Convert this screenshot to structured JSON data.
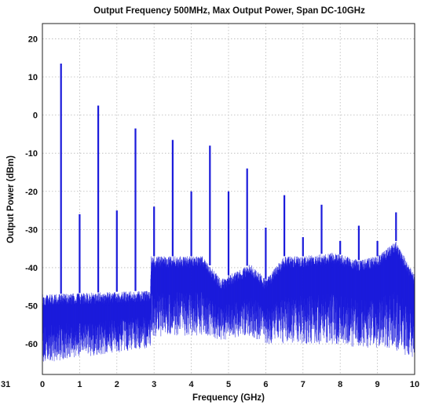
{
  "chart_data": {
    "type": "line",
    "title": "Output Frequency 500MHz, Max Output Power, Span DC-10GHz",
    "xlabel": "Frequency (GHz)",
    "ylabel": "Output Power (dBm)",
    "xlim": [
      0,
      10
    ],
    "ylim": [
      -68,
      24
    ],
    "x_ticks": [
      0,
      1,
      2,
      3,
      4,
      5,
      6,
      7,
      8,
      9,
      10
    ],
    "y_ticks": [
      20,
      10,
      0,
      -10,
      -20,
      -30,
      -40,
      -50,
      -60
    ],
    "grid": true,
    "line_color": "#1a1adb",
    "series": [
      {
        "name": "",
        "peaks": [
          {
            "x": 0.5,
            "y": 13.5
          },
          {
            "x": 1.0,
            "y": -26
          },
          {
            "x": 1.5,
            "y": 2.5
          },
          {
            "x": 2.0,
            "y": -25
          },
          {
            "x": 2.5,
            "y": -3.5
          },
          {
            "x": 3.0,
            "y": -24
          },
          {
            "x": 3.5,
            "y": -6.5
          },
          {
            "x": 4.0,
            "y": -20
          },
          {
            "x": 4.5,
            "y": -8
          },
          {
            "x": 5.0,
            "y": -20
          },
          {
            "x": 5.5,
            "y": -14
          },
          {
            "x": 6.0,
            "y": -29.5
          },
          {
            "x": 6.5,
            "y": -21
          },
          {
            "x": 7.0,
            "y": -32
          },
          {
            "x": 7.5,
            "y": -23.5
          },
          {
            "x": 8.0,
            "y": -33
          },
          {
            "x": 8.5,
            "y": -29
          },
          {
            "x": 9.0,
            "y": -33
          },
          {
            "x": 9.5,
            "y": -25.5
          }
        ],
        "noise_floor": [
          {
            "x": 0.0,
            "top": -47,
            "bottom": -65
          },
          {
            "x": 2.9,
            "top": -46,
            "bottom": -61
          },
          {
            "x": 2.92,
            "top": -37,
            "bottom": -58
          },
          {
            "x": 4.3,
            "top": -37,
            "bottom": -58
          },
          {
            "x": 4.8,
            "top": -43,
            "bottom": -59
          },
          {
            "x": 5.6,
            "top": -39,
            "bottom": -58
          },
          {
            "x": 6.0,
            "top": -43,
            "bottom": -60
          },
          {
            "x": 6.5,
            "top": -37,
            "bottom": -60
          },
          {
            "x": 7.0,
            "top": -37,
            "bottom": -60
          },
          {
            "x": 7.8,
            "top": -36,
            "bottom": -60
          },
          {
            "x": 8.5,
            "top": -38,
            "bottom": -61
          },
          {
            "x": 9.0,
            "top": -37,
            "bottom": -61
          },
          {
            "x": 9.5,
            "top": -33,
            "bottom": -62
          },
          {
            "x": 10.0,
            "top": -42,
            "bottom": -64
          }
        ]
      }
    ]
  },
  "stray_text": "31"
}
